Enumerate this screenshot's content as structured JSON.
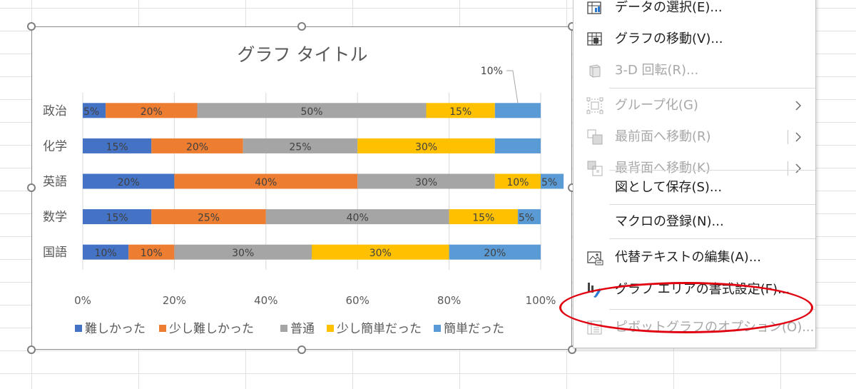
{
  "chart_data": {
    "type": "bar",
    "orientation": "horizontal",
    "stacked": "100%",
    "title": "グラフ タイトル",
    "categories": [
      "政治",
      "化学",
      "英語",
      "数学",
      "国語"
    ],
    "series": [
      {
        "name": "難しかった",
        "color": "#4472c4",
        "values": [
          5,
          15,
          20,
          15,
          10
        ]
      },
      {
        "name": "少し難しかった",
        "color": "#ed7d31",
        "values": [
          20,
          20,
          40,
          25,
          10
        ]
      },
      {
        "name": "普通",
        "color": "#a5a5a5",
        "values": [
          50,
          25,
          30,
          40,
          30
        ]
      },
      {
        "name": "少し簡単だった",
        "color": "#ffc000",
        "values": [
          15,
          30,
          10,
          15,
          30
        ]
      },
      {
        "name": "簡単だった",
        "color": "#5b9bd5",
        "values": [
          10,
          10,
          5,
          5,
          20
        ]
      }
    ],
    "data_labels": [
      [
        "5%",
        "20%",
        "50%",
        "15%",
        "10%"
      ],
      [
        "15%",
        "20%",
        "25%",
        "30%",
        ""
      ],
      [
        "20%",
        "40%",
        "30%",
        "10%",
        "5%"
      ],
      [
        "15%",
        "25%",
        "40%",
        "15%",
        "5%"
      ],
      [
        "10%",
        "10%",
        "30%",
        "30%",
        "20%"
      ]
    ],
    "xlim": [
      0,
      100
    ],
    "x_ticks": [
      "0%",
      "20%",
      "40%",
      "60%",
      "80%",
      "100%"
    ],
    "grid": true,
    "legend_position": "bottom"
  },
  "context_menu": {
    "items": [
      {
        "label": "データの選択(E)...",
        "icon": "select-data-icon",
        "enabled": true,
        "submenu": false
      },
      {
        "label": "グラフの移動(V)...",
        "icon": "move-chart-icon",
        "enabled": true,
        "submenu": false
      },
      {
        "label": "3-D 回転(R)...",
        "icon": "3d-rotation-icon",
        "enabled": false,
        "submenu": false
      },
      {
        "label": "グループ化(G)",
        "icon": "group-icon",
        "enabled": false,
        "submenu": true
      },
      {
        "label": "最前面へ移動(R)",
        "icon": "bring-to-front-icon",
        "enabled": false,
        "submenu": true
      },
      {
        "label": "最背面へ移動(K)",
        "icon": "send-to-back-icon",
        "enabled": false,
        "submenu": true
      },
      {
        "label": "図として保存(S)...",
        "icon": "",
        "enabled": true,
        "submenu": false
      },
      {
        "label": "マクロの登録(N)...",
        "icon": "",
        "enabled": true,
        "submenu": false
      },
      {
        "label": "代替テキストの編集(A)...",
        "icon": "alt-text-icon",
        "enabled": true,
        "submenu": false
      },
      {
        "label": "グラフ エリアの書式設定(F)...",
        "icon": "format-chart-area-icon",
        "enabled": true,
        "submenu": false
      },
      {
        "label": "ピボットグラフのオプション(O)...",
        "icon": "pivot-chart-options-icon",
        "enabled": false,
        "submenu": false
      }
    ],
    "highlight_color": "#e0000f"
  }
}
